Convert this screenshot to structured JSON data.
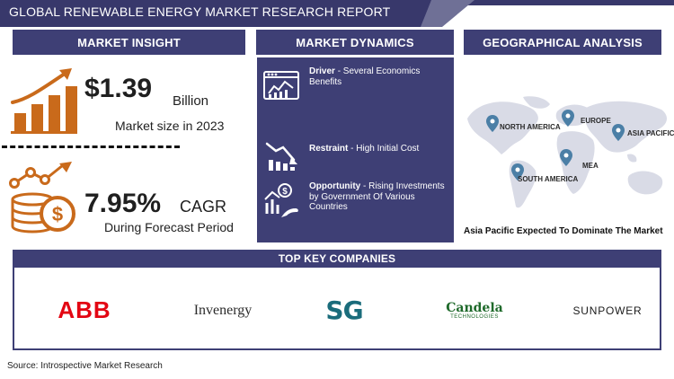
{
  "header": {
    "title": "GLOBAL RENEWABLE ENERGY  MARKET RESEARCH REPORT"
  },
  "sections": {
    "market_insight": "MARKET INSIGHT",
    "market_dynamics": "MARKET DYNAMICS",
    "geographical_analysis": "GEOGRAPHICAL ANALYSIS",
    "top_key_companies": "TOP KEY COMPANIES"
  },
  "market_insight": {
    "market_size_value": "$1.39",
    "market_size_unit": "Billion",
    "market_size_caption": "Market size in 2023",
    "cagr_value": "7.95%",
    "cagr_unit": "CAGR",
    "cagr_caption": "During Forecast Period"
  },
  "market_dynamics": {
    "driver_label": "Driver",
    "driver_text": "- Several Economics Benefits",
    "restraint_label": "Restraint",
    "restraint_text": "- High Initial Cost",
    "opportunity_label": "Opportunity",
    "opportunity_text": "- Rising Investments by Government Of Various Countries"
  },
  "geographical_analysis": {
    "regions": [
      {
        "name": "NORTH AMERICA"
      },
      {
        "name": "EUROPE"
      },
      {
        "name": "ASIA PACIFIC"
      },
      {
        "name": "MEA"
      },
      {
        "name": "SOUTH AMERICA"
      }
    ],
    "footer": "Asia Pacific Expected To Dominate The Market"
  },
  "top_key_companies": {
    "companies": [
      {
        "name": "ABB"
      },
      {
        "name": "Invenergy"
      },
      {
        "name": "SG"
      },
      {
        "name": "Candela",
        "subtitle": "TECHNOLOGIES"
      },
      {
        "name": "SUNPOWER"
      }
    ]
  },
  "source": "Source: Introspective Market Research",
  "colors": {
    "navy": "#38386b",
    "orange": "#c96a1b",
    "map": "#d9dbe6"
  },
  "icons": {
    "growth": "bar-chart-up-arrow-icon",
    "money": "coin-stack-dollar-icon",
    "driver": "dashboard-chart-icon",
    "restraint": "bar-chart-down-icon",
    "opportunity": "hand-growth-icon",
    "pin": "location-pin-icon",
    "map": "world-map-icon"
  }
}
